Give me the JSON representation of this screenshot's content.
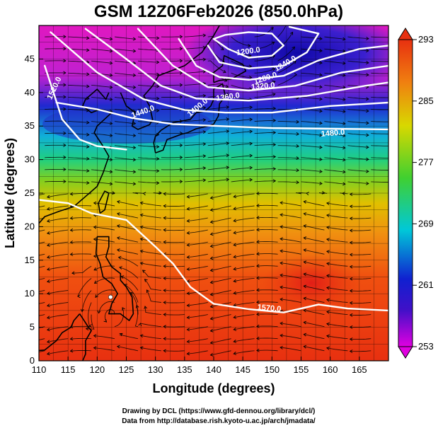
{
  "title": "GSM 12Z06Feb2026 (850.0hPa)",
  "xlabel": "Longitude (degrees)",
  "ylabel": "Latitude  (degrees)",
  "x_ticks": [
    "110",
    "115",
    "120",
    "125",
    "130",
    "135",
    "140",
    "145",
    "150",
    "155",
    "160",
    "165"
  ],
  "y_ticks": [
    "0",
    "5",
    "10",
    "15",
    "20",
    "25",
    "30",
    "35",
    "40",
    "45"
  ],
  "colorbar": {
    "ticks": [
      "293",
      "285",
      "277",
      "269",
      "261",
      "253"
    ],
    "min": 253,
    "max": 293,
    "colors": [
      "#e000e0",
      "#1010cc",
      "#00c8d8",
      "#30d040",
      "#f0c800",
      "#e83010"
    ]
  },
  "contour_labels": [
    {
      "text": "1200.0",
      "lon": 146.0,
      "lat": 45.8,
      "angle": -8
    },
    {
      "text": "1240.0",
      "lon": 152.5,
      "lat": 44.0,
      "angle": -30
    },
    {
      "text": "1280.0",
      "lon": 149.0,
      "lat": 41.8,
      "angle": -18
    },
    {
      "text": "1320.0",
      "lon": 148.5,
      "lat": 40.6,
      "angle": -5
    },
    {
      "text": "1360.0",
      "lon": 142.5,
      "lat": 39.0,
      "angle": -8
    },
    {
      "text": "1400.0",
      "lon": 137.5,
      "lat": 37.5,
      "angle": -40
    },
    {
      "text": "1440.0",
      "lon": 128.0,
      "lat": 36.8,
      "angle": -20
    },
    {
      "text": "1480.0",
      "lon": 160.5,
      "lat": 33.6,
      "angle": -5
    },
    {
      "text": "1520.0",
      "lon": 113.0,
      "lat": 40.5,
      "angle": -65
    },
    {
      "text": "1570.0",
      "lon": 149.5,
      "lat": 7.5,
      "angle": 5
    }
  ],
  "credit_line1": "Drawing by DCL (https://www.gfd-dennou.org/library/dcl/)",
  "credit_line2": "Data from http://database.rish.kyoto-u.ac.jp/arch/jmadata/"
}
